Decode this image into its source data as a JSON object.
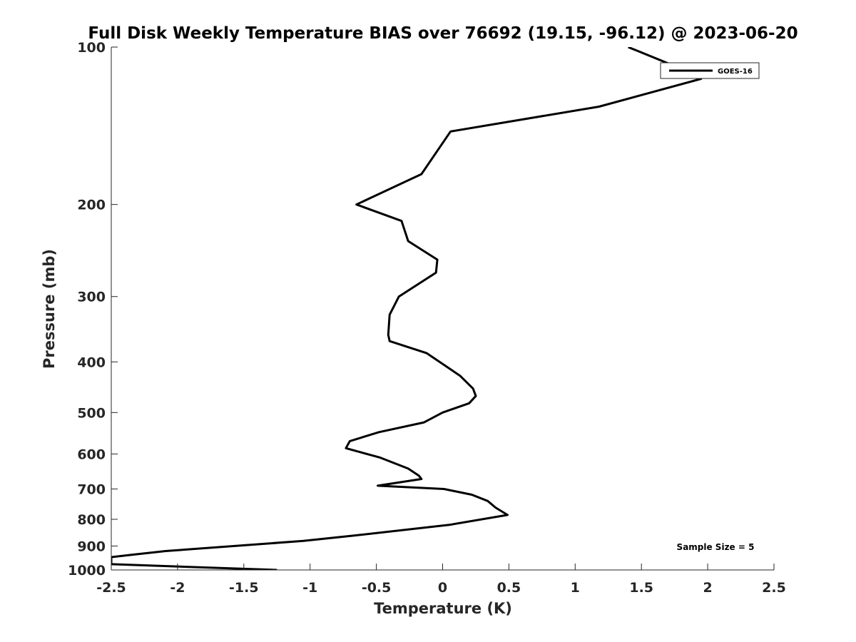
{
  "chart_data": {
    "type": "line",
    "title": "Full Disk Weekly Temperature BIAS over 76692 (19.15, -96.12) @ 2023-06-20",
    "xlabel": "Temperature (K)",
    "ylabel": "Pressure (mb)",
    "xlim": [
      -2.5,
      2.5
    ],
    "ylim": [
      1000,
      100
    ],
    "y_scale": "log",
    "y_reversed": true,
    "grid": false,
    "x_ticks": [
      "-2.5",
      "-2",
      "-1.5",
      "-1",
      "-0.5",
      "0",
      "0.5",
      "1",
      "1.5",
      "2",
      "2.5"
    ],
    "y_ticks": [
      "100",
      "200",
      "300",
      "400",
      "500",
      "600",
      "700",
      "800",
      "900",
      "1000"
    ],
    "legend": {
      "position": "top-right",
      "entries": [
        "GOES-16"
      ]
    },
    "annotation": "Sample Size = 5",
    "series": [
      {
        "name": "GOES-16",
        "color": "#000000",
        "points": [
          [
            1.4,
            100
          ],
          [
            1.8,
            110
          ],
          [
            1.95,
            115
          ],
          [
            1.18,
            130
          ],
          [
            0.06,
            145
          ],
          [
            -0.16,
            175
          ],
          [
            -0.65,
            200
          ],
          [
            -0.31,
            215
          ],
          [
            -0.26,
            235
          ],
          [
            -0.04,
            255
          ],
          [
            -0.05,
            270
          ],
          [
            -0.33,
            300
          ],
          [
            -0.4,
            325
          ],
          [
            -0.41,
            355
          ],
          [
            -0.4,
            365
          ],
          [
            -0.12,
            385
          ],
          [
            0.13,
            425
          ],
          [
            0.23,
            450
          ],
          [
            0.25,
            465
          ],
          [
            0.2,
            480
          ],
          [
            0.0,
            500
          ],
          [
            -0.14,
            522
          ],
          [
            -0.48,
            545
          ],
          [
            -0.7,
            567
          ],
          [
            -0.73,
            585
          ],
          [
            -0.47,
            610
          ],
          [
            -0.26,
            640
          ],
          [
            -0.18,
            660
          ],
          [
            -0.16,
            670
          ],
          [
            -0.49,
            690
          ],
          [
            0.01,
            700
          ],
          [
            0.22,
            718
          ],
          [
            0.34,
            738
          ],
          [
            0.4,
            760
          ],
          [
            0.49,
            785
          ],
          [
            0.05,
            820
          ],
          [
            -0.68,
            860
          ],
          [
            -1.05,
            880
          ],
          [
            -2.09,
            920
          ],
          [
            -2.34,
            935
          ],
          [
            -2.5,
            945
          ],
          [
            -2.5,
            970
          ],
          [
            -2.5,
            975
          ],
          [
            -1.25,
            1000
          ]
        ]
      }
    ]
  }
}
